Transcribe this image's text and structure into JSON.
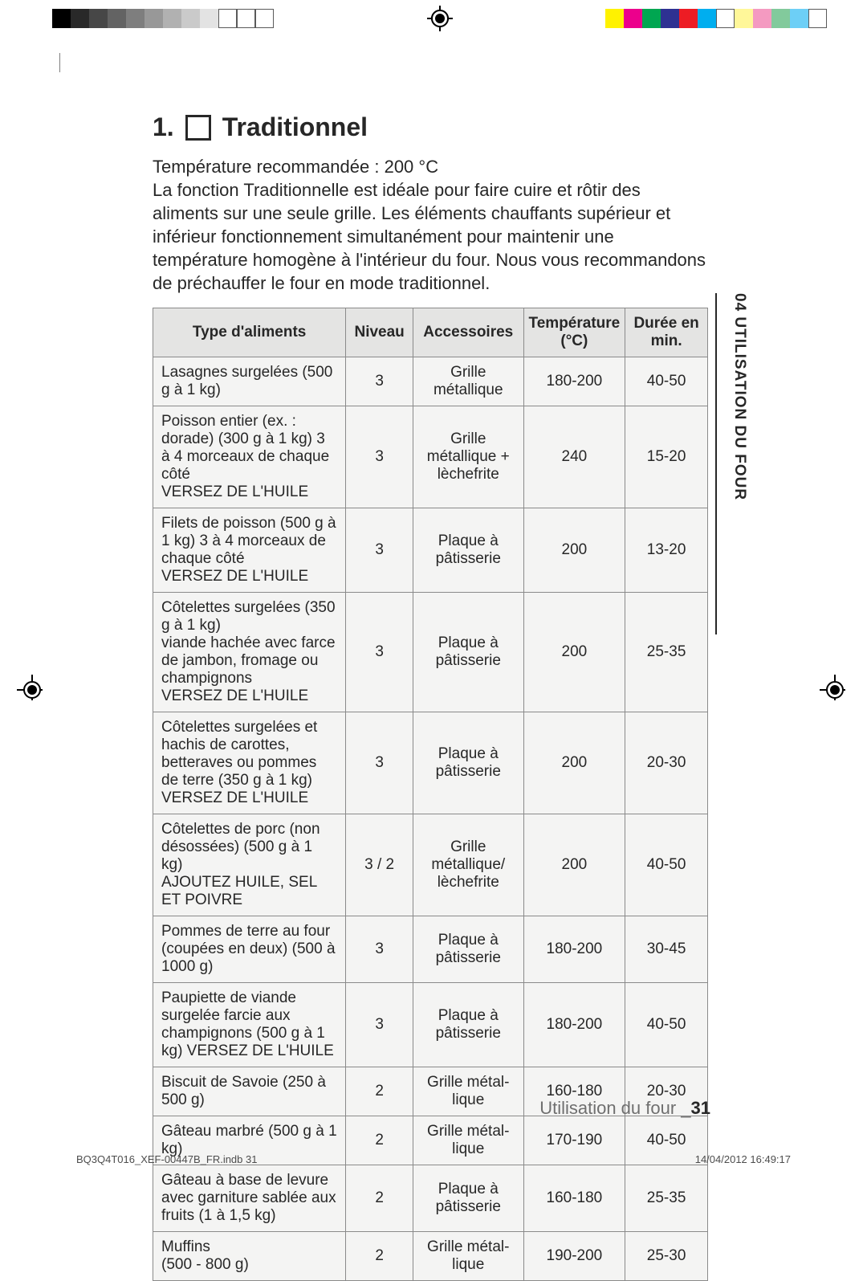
{
  "calibration": {
    "left_swatches": [
      "#000000",
      "#292929",
      "#474747",
      "#636363",
      "#7e7e7e",
      "#989898",
      "#b1b1b1",
      "#cacaca",
      "#e3e3e3",
      "#ffffff",
      "#ffffff",
      "#ffffff"
    ],
    "right_swatches": [
      "#fff200",
      "#ec008c",
      "#00a651",
      "#2e3192",
      "#ed1c24",
      "#00aeef",
      "#ffffff",
      "#fff799",
      "#f49ac1",
      "#82ca9c",
      "#6dcff6",
      "#ffffff"
    ]
  },
  "heading": {
    "number": "1.",
    "title": "Traditionnel"
  },
  "intro": "Température recommandée : 200 °C\nLa fonction Traditionnelle est idéale pour faire cuire et rôtir des aliments sur une seule grille. Les éléments chauffants supérieur et inférieur fonctionnement simultanément pour maintenir une température homogène à l'intérieur du four. Nous vous recommandons de préchauffer le four en mode traditionnel.",
  "table": {
    "headers": {
      "food": "Type d'aliments",
      "level": "Niveau",
      "acc": "Accessoires",
      "temp": "Température (°C)",
      "time": "Durée en min."
    },
    "rows": [
      {
        "food": "Lasagnes surgelées (500 g à 1 kg)",
        "level": "3",
        "acc": "Grille métallique",
        "temp": "180-200",
        "time": "40-50"
      },
      {
        "food": "Poisson entier (ex. : dorade) (300 g à 1 kg) 3 à 4 morceaux de chaque côté\nVERSEZ DE L'HUILE",
        "level": "3",
        "acc": "Grille métallique + lèchefrite",
        "temp": "240",
        "time": "15-20"
      },
      {
        "food": "Filets de poisson (500 g à 1 kg) 3 à 4 morceaux de chaque côté\nVERSEZ DE L'HUILE",
        "level": "3",
        "acc": "Plaque à pâtisserie",
        "temp": "200",
        "time": "13-20"
      },
      {
        "food": "Côtelettes surgelées (350 g à 1 kg)\nviande hachée avec farce de jambon, fromage ou champignons\nVERSEZ DE L'HUILE",
        "level": "3",
        "acc": "Plaque à pâtisserie",
        "temp": "200",
        "time": "25-35"
      },
      {
        "food": "Côtelettes surgelées et hachis de carottes, betteraves ou pommes de terre (350 g à 1 kg)\nVERSEZ DE L'HUILE",
        "level": "3",
        "acc": "Plaque à pâtisserie",
        "temp": "200",
        "time": "20-30"
      },
      {
        "food": "Côtelettes de porc (non désossées) (500 g à 1 kg)\nAJOUTEZ HUILE, SEL ET POIVRE",
        "level": "3 / 2",
        "acc": "Grille métallique/ lèchefrite",
        "temp": "200",
        "time": "40-50"
      },
      {
        "food": "Pommes de terre au four (coupées en deux) (500 à 1000 g)",
        "level": "3",
        "acc": "Plaque à pâtisserie",
        "temp": "180-200",
        "time": "30-45"
      },
      {
        "food": "Paupiette de viande surgelée farcie aux champignons (500 g à 1 kg) VERSEZ DE L'HUILE",
        "level": "3",
        "acc": "Plaque à pâtisserie",
        "temp": "180-200",
        "time": "40-50"
      },
      {
        "food": "Biscuit de Savoie (250 à 500 g)",
        "level": "2",
        "acc": "Grille métal­lique",
        "temp": "160-180",
        "time": "20-30"
      },
      {
        "food": "Gâteau marbré (500 g à 1 kg)",
        "level": "2",
        "acc": "Grille métal­lique",
        "temp": "170-190",
        "time": "40-50"
      },
      {
        "food": "Gâteau à base de levure avec garniture sablée aux fruits (1 à 1,5 kg)",
        "level": "2",
        "acc": "Plaque à pâtis­serie",
        "temp": "160-180",
        "time": "25-35"
      },
      {
        "food": "Muffins\n(500 - 800 g)",
        "level": "2",
        "acc": "Grille métal­lique",
        "temp": "190-200",
        "time": "25-30"
      }
    ]
  },
  "sidetab": "04 UTILISATION DU FOUR",
  "footer": {
    "running_label": "Utilisation du four _",
    "running_page": "31",
    "file": "BQ3Q4T016_XEF-00447B_FR.indb   31",
    "timestamp": "14/04/2012   16:49:17"
  }
}
